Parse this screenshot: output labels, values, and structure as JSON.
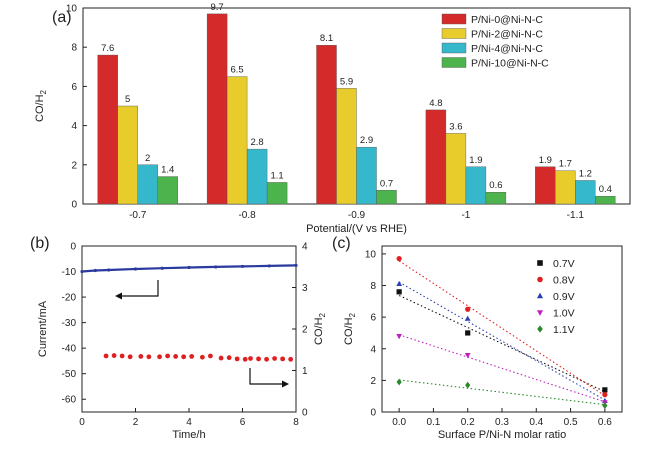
{
  "panels": {
    "a": "(a)",
    "b": "(b)",
    "c": "(c)"
  },
  "chart_data": [
    {
      "panel": "(a)",
      "type": "bar",
      "xlabel": "Potential/(V vs RHE)",
      "ylabel": "CO/H2",
      "ylim": [
        0,
        10
      ],
      "yticks": [
        0,
        2,
        4,
        6,
        8,
        10
      ],
      "legend_position": "top-right",
      "categories": [
        "-0.7",
        "-0.8",
        "-0.9",
        "-1",
        "-1.1"
      ],
      "series": [
        {
          "name": "P/Ni-0@Ni-N-C",
          "color": "#d42a2a",
          "values": [
            7.6,
            9.7,
            8.1,
            4.8,
            1.9
          ],
          "labels": [
            "7.6",
            "9.7",
            "8.1",
            "4.8",
            "1.9"
          ]
        },
        {
          "name": "P/Ni-2@Ni-N-C",
          "color": "#e8cc2c",
          "values": [
            5,
            6.5,
            5.9,
            3.6,
            1.7
          ],
          "labels": [
            "5",
            "6.5",
            "5.9",
            "3.6",
            "1.7"
          ]
        },
        {
          "name": "P/Ni-4@Ni-N-C",
          "color": "#35b8cc",
          "values": [
            2,
            2.8,
            2.9,
            1.9,
            1.2
          ],
          "labels": [
            "2",
            "2.8",
            "2.9",
            "1.9",
            "1.2"
          ]
        },
        {
          "name": "P/Ni-10@Ni-N-C",
          "color": "#4db34d",
          "values": [
            1.4,
            1.1,
            0.7,
            0.6,
            0.4
          ],
          "labels": [
            "1.4",
            "1.1",
            "0.7",
            "0.6",
            "0.4"
          ]
        }
      ]
    },
    {
      "panel": "(b)",
      "type": "line",
      "xlabel": "Time/h",
      "ylabel_left": "Current/mA",
      "ylabel_right": "CO/H2",
      "xlim": [
        0,
        8
      ],
      "ylim_left": [
        -65,
        0
      ],
      "ylim_right": [
        0,
        4
      ],
      "xticks": [
        0,
        2,
        4,
        6,
        8
      ],
      "yticks_left": [
        0,
        -10,
        -20,
        -30,
        -40,
        -50,
        -60
      ],
      "yticks_right": [
        0,
        1,
        2,
        3,
        4
      ],
      "series": [
        {
          "axis": "left",
          "color": "#2a3a9e",
          "x": [
            0,
            0.5,
            1,
            2,
            3,
            4,
            5,
            6,
            7,
            8
          ],
          "y": [
            -10,
            -9.6,
            -9.4,
            -9.0,
            -8.7,
            -8.4,
            -8.2,
            -8.0,
            -7.8,
            -7.6
          ]
        },
        {
          "axis": "right",
          "color": "#e02020",
          "x": [
            0.9,
            1.2,
            1.5,
            1.8,
            2.2,
            2.5,
            2.9,
            3.2,
            3.5,
            3.8,
            4.1,
            4.5,
            4.8,
            5.2,
            5.5,
            5.8,
            6.1,
            6.3,
            6.6,
            6.9,
            7.2,
            7.5,
            7.8
          ],
          "y": [
            1.35,
            1.36,
            1.35,
            1.33,
            1.34,
            1.33,
            1.33,
            1.35,
            1.34,
            1.33,
            1.34,
            1.32,
            1.35,
            1.3,
            1.31,
            1.28,
            1.27,
            1.29,
            1.28,
            1.27,
            1.29,
            1.28,
            1.27
          ]
        }
      ]
    },
    {
      "panel": "(c)",
      "type": "scatter",
      "xlabel": "Surface P/Ni-N molar ratio",
      "ylabel": "CO/H2",
      "xlim": [
        -0.05,
        0.65
      ],
      "ylim": [
        0,
        10.5
      ],
      "xticks": [
        0.0,
        0.1,
        0.2,
        0.3,
        0.4,
        0.5,
        0.6
      ],
      "xticklabels": [
        "0.0",
        "0.1",
        "0.2",
        "0.3",
        "0.4",
        "0.5",
        "0.6"
      ],
      "yticks": [
        0,
        2,
        4,
        6,
        8,
        10
      ],
      "legend_position": "top-right",
      "series": [
        {
          "name": "0.7V",
          "color": "#111111",
          "marker": "square",
          "x": [
            0,
            0.2,
            0.6
          ],
          "y": [
            7.6,
            5.0,
            1.4
          ]
        },
        {
          "name": "0.8V",
          "color": "#e02020",
          "marker": "circle",
          "x": [
            0,
            0.2,
            0.6
          ],
          "y": [
            9.7,
            6.5,
            1.1
          ]
        },
        {
          "name": "0.9V",
          "color": "#2a3fb5",
          "marker": "triangle",
          "x": [
            0,
            0.2,
            0.6
          ],
          "y": [
            8.1,
            5.9,
            0.7
          ]
        },
        {
          "name": "1.0V",
          "color": "#c020c0",
          "marker": "tri-down",
          "x": [
            0,
            0.2,
            0.6
          ],
          "y": [
            4.8,
            3.6,
            0.6
          ]
        },
        {
          "name": "1.1V",
          "color": "#2a8a2a",
          "marker": "diamond",
          "x": [
            0,
            0.2,
            0.6
          ],
          "y": [
            1.9,
            1.7,
            0.4
          ]
        }
      ]
    }
  ]
}
